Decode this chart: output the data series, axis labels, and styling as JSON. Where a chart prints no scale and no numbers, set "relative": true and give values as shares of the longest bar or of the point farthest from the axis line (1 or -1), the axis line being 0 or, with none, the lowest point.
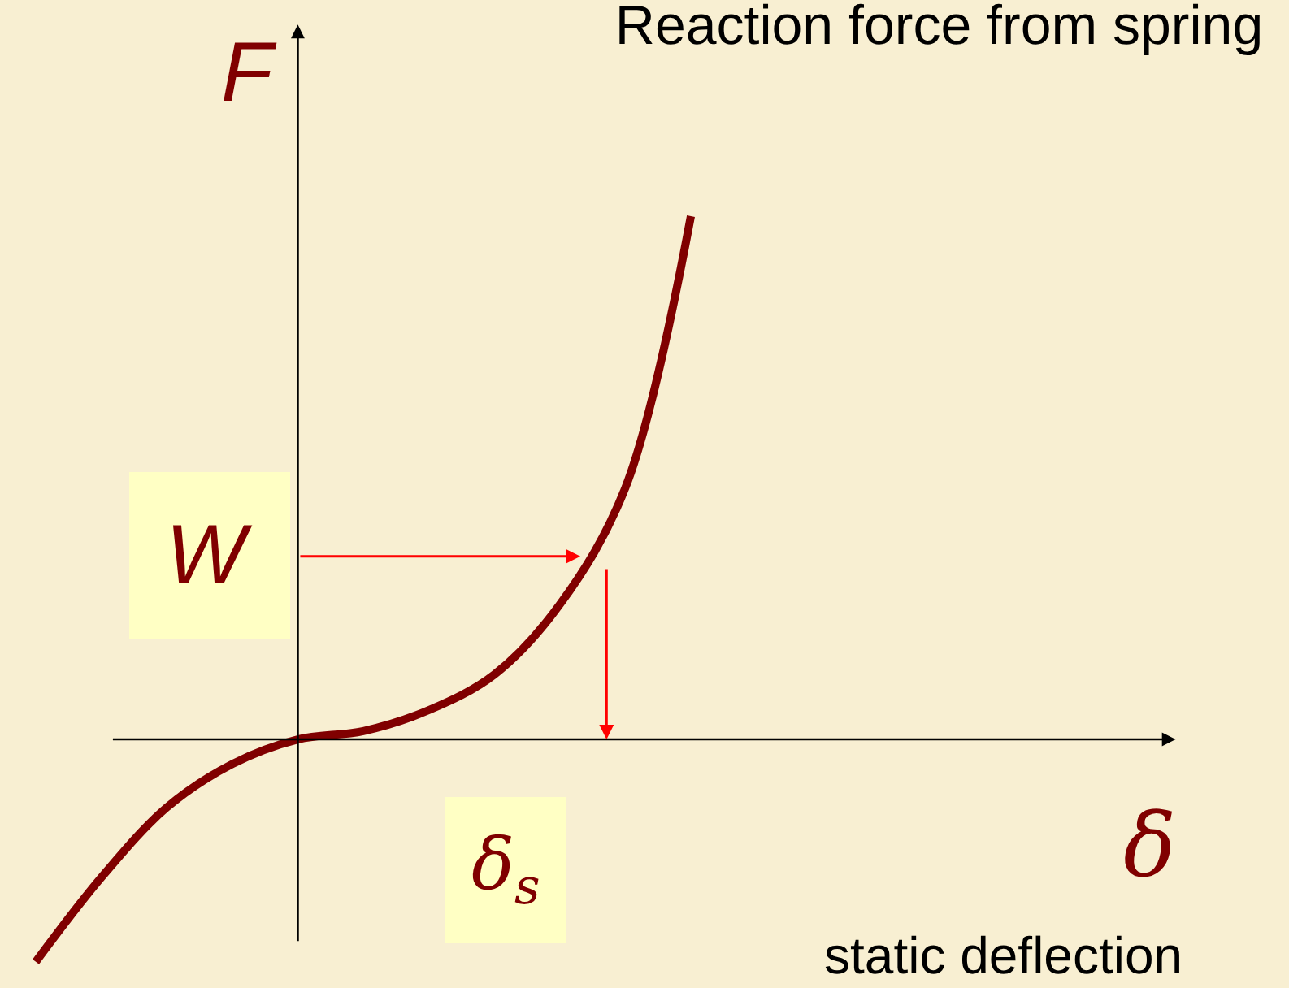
{
  "chart_data": {
    "type": "line",
    "title": "Reaction force from spring",
    "xlabel": "δ",
    "ylabel": "F",
    "relative": true,
    "categories": [
      null,
      null,
      null,
      null,
      null,
      null,
      null,
      null,
      null,
      null,
      null
    ],
    "series": [
      {
        "color": "#800000",
        "values": [
          -0.425,
          -0.264,
          -0.13,
          -0.047,
          0,
          0.016,
          0.056,
          0.124,
          0.258,
          0.481,
          1.0
        ]
      }
    ],
    "ref_lines": [
      {
        "axis": "y",
        "value": 0.35,
        "label": "W",
        "color": "#ff0000"
      }
    ],
    "annotations": [
      "δ$_{s}$",
      "static deflection"
    ]
  }
}
